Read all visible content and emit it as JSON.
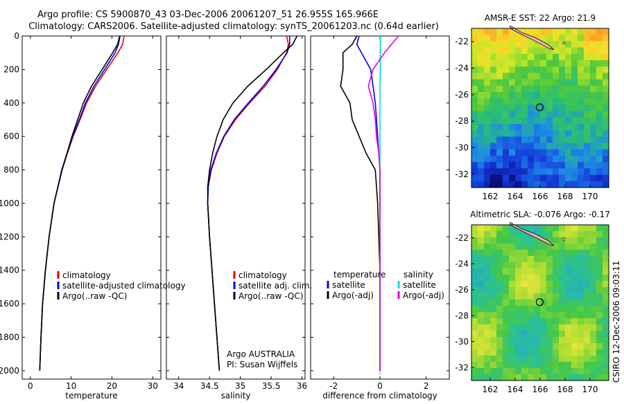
{
  "header": {
    "title_line1": "Argo profile: CS 5900870_43 03-Dec-2006 20061207_51 26.955S 165.966E",
    "title_line2": "Climatology: CARS2006. Satellite-adjusted climatology: synTS_20061203.nc (0.64d earlier)"
  },
  "colors": {
    "climatology": "#e00000",
    "satellite": "#0000e0",
    "argo": "#000000",
    "salinity_satellite": "#00e0e0",
    "salinity_argo": "#e000e0"
  },
  "chart_data": [
    {
      "type": "line",
      "id": "temperature",
      "xlabel": "temperature",
      "ylabel": "",
      "xlim": [
        -2,
        32
      ],
      "ylim": [
        2050,
        0
      ],
      "xticks": [
        0,
        10,
        20,
        30
      ],
      "yticks": [
        0,
        200,
        400,
        600,
        800,
        1000,
        1200,
        1400,
        1600,
        1800,
        2000
      ],
      "depth": [
        0,
        50,
        100,
        200,
        300,
        400,
        500,
        600,
        700,
        800,
        1000,
        1200,
        1400,
        1600,
        1800,
        2000
      ],
      "legend": [
        "climatology",
        "satellite-adjusted climatology",
        "Argo(..raw -QC)"
      ],
      "series": [
        {
          "name": "climatology",
          "color_key": "climatology",
          "values": [
            23.0,
            22.6,
            21.5,
            18.7,
            16.0,
            13.8,
            12.2,
            10.5,
            9.1,
            7.8,
            5.8,
            4.6,
            3.7,
            3.0,
            2.6,
            2.3
          ]
        },
        {
          "name": "satellite-adjusted climatology",
          "color_key": "satellite",
          "values": [
            22.0,
            21.6,
            20.8,
            18.2,
            15.6,
            13.5,
            12.0,
            10.4,
            9.0,
            7.8,
            5.8,
            4.6,
            3.7,
            3.0,
            2.6,
            2.3
          ]
        },
        {
          "name": "Argo(..raw -QC)",
          "color_key": "argo",
          "values": [
            21.9,
            21.4,
            20.2,
            17.6,
            15.0,
            13.0,
            11.6,
            10.2,
            9.0,
            7.7,
            5.8,
            4.6,
            3.7,
            3.0,
            2.6,
            2.3
          ]
        }
      ]
    },
    {
      "type": "line",
      "id": "salinity",
      "xlabel": "salinity",
      "xlim": [
        33.8,
        36.05
      ],
      "ylim": [
        2050,
        0
      ],
      "xticks": [
        34,
        34.5,
        35,
        35.5,
        36
      ],
      "depth": [
        0,
        50,
        100,
        200,
        300,
        400,
        500,
        600,
        700,
        800,
        900,
        1000,
        1200,
        1400,
        1600,
        1800,
        2000
      ],
      "legend": [
        "climatology",
        "satellite adj. clim.",
        "Argo(..raw -QC)"
      ],
      "annotation": [
        "Argo AUSTRALIA",
        "PI: Susan Wijffels"
      ],
      "series": [
        {
          "name": "climatology",
          "color_key": "climatology",
          "values": [
            35.75,
            35.78,
            35.75,
            35.6,
            35.4,
            35.15,
            34.92,
            34.74,
            34.62,
            34.53,
            34.48,
            34.47,
            34.5,
            34.54,
            34.58,
            34.62,
            34.66
          ]
        },
        {
          "name": "satellite adj. clim.",
          "color_key": "satellite",
          "values": [
            35.8,
            35.8,
            35.76,
            35.58,
            35.37,
            35.13,
            34.9,
            34.73,
            34.61,
            34.52,
            34.48,
            34.47,
            34.5,
            34.54,
            34.58,
            34.62,
            34.66
          ]
        },
        {
          "name": "Argo(..raw -QC)",
          "color_key": "argo",
          "values": [
            35.92,
            35.85,
            35.7,
            35.42,
            35.12,
            34.88,
            34.72,
            34.62,
            34.55,
            34.5,
            34.47,
            34.47,
            34.5,
            34.54,
            34.58,
            34.62,
            34.66
          ]
        }
      ]
    },
    {
      "type": "line",
      "id": "difference",
      "xlabel": "difference from climatology",
      "xlim": [
        -3.0,
        3.0
      ],
      "ylim": [
        2050,
        0
      ],
      "xticks": [
        -2,
        0,
        2
      ],
      "depth": [
        0,
        50,
        100,
        200,
        300,
        400,
        500,
        600,
        700,
        800,
        1000,
        1200,
        1400,
        1600,
        1800,
        2000
      ],
      "legend_left_title": "temperature",
      "legend_right_title": "salinity",
      "legend_left": [
        "satellite",
        "Argo(-adj)"
      ],
      "legend_right": [
        "satellite",
        "Argo(-adj)"
      ],
      "series": [
        {
          "name": "temperature satellite",
          "color_key": "satellite",
          "values": [
            -0.9,
            -1.0,
            -0.8,
            -0.4,
            -0.3,
            -0.2,
            -0.15,
            -0.1,
            -0.05,
            0,
            0,
            0,
            0,
            0,
            0,
            0
          ]
        },
        {
          "name": "temperature Argo(-adj)",
          "color_key": "argo",
          "values": [
            -1.0,
            -1.2,
            -1.6,
            -1.6,
            -1.7,
            -1.3,
            -1.2,
            -0.9,
            -0.6,
            -0.2,
            -0.1,
            -0.05,
            0,
            0,
            0,
            0
          ]
        },
        {
          "name": "salinity satellite",
          "color_key": "salinity_satellite",
          "values": [
            0.02,
            0.02,
            0.02,
            0.02,
            0.0,
            0.0,
            0.0,
            0.0,
            0.0,
            0.0,
            0.0,
            0.0,
            0.0,
            0.0,
            0.0,
            0.0
          ]
        },
        {
          "name": "salinity Argo(-adj)",
          "color_key": "salinity_argo",
          "values": [
            0.8,
            0.5,
            0.2,
            -0.3,
            -0.5,
            -0.3,
            -0.2,
            -0.15,
            -0.05,
            0,
            0,
            0,
            0,
            0,
            0,
            0
          ]
        }
      ]
    },
    {
      "type": "heatmap",
      "id": "sst_map",
      "title": "AMSR-E SST: 22  Argo: 21.9",
      "xticks": [
        162,
        164,
        166,
        168,
        170
      ],
      "yticks": [
        -22,
        -24,
        -26,
        -28,
        -30,
        -32
      ],
      "xlim": [
        160.5,
        171.5
      ],
      "ylim": [
        -33,
        -21
      ]
    },
    {
      "type": "heatmap",
      "id": "sla_map",
      "title": "Altimetric SLA: -0.076  Argo: -0.17",
      "xticks": [
        162,
        164,
        166,
        168,
        170
      ],
      "yticks": [
        -22,
        -24,
        -26,
        -28,
        -30,
        -32
      ],
      "xlim": [
        160.5,
        171.5
      ],
      "ylim": [
        -33,
        -21
      ]
    }
  ],
  "footer": {
    "side_label": "CSIRO  12-Dec-2006 09:03:11"
  }
}
